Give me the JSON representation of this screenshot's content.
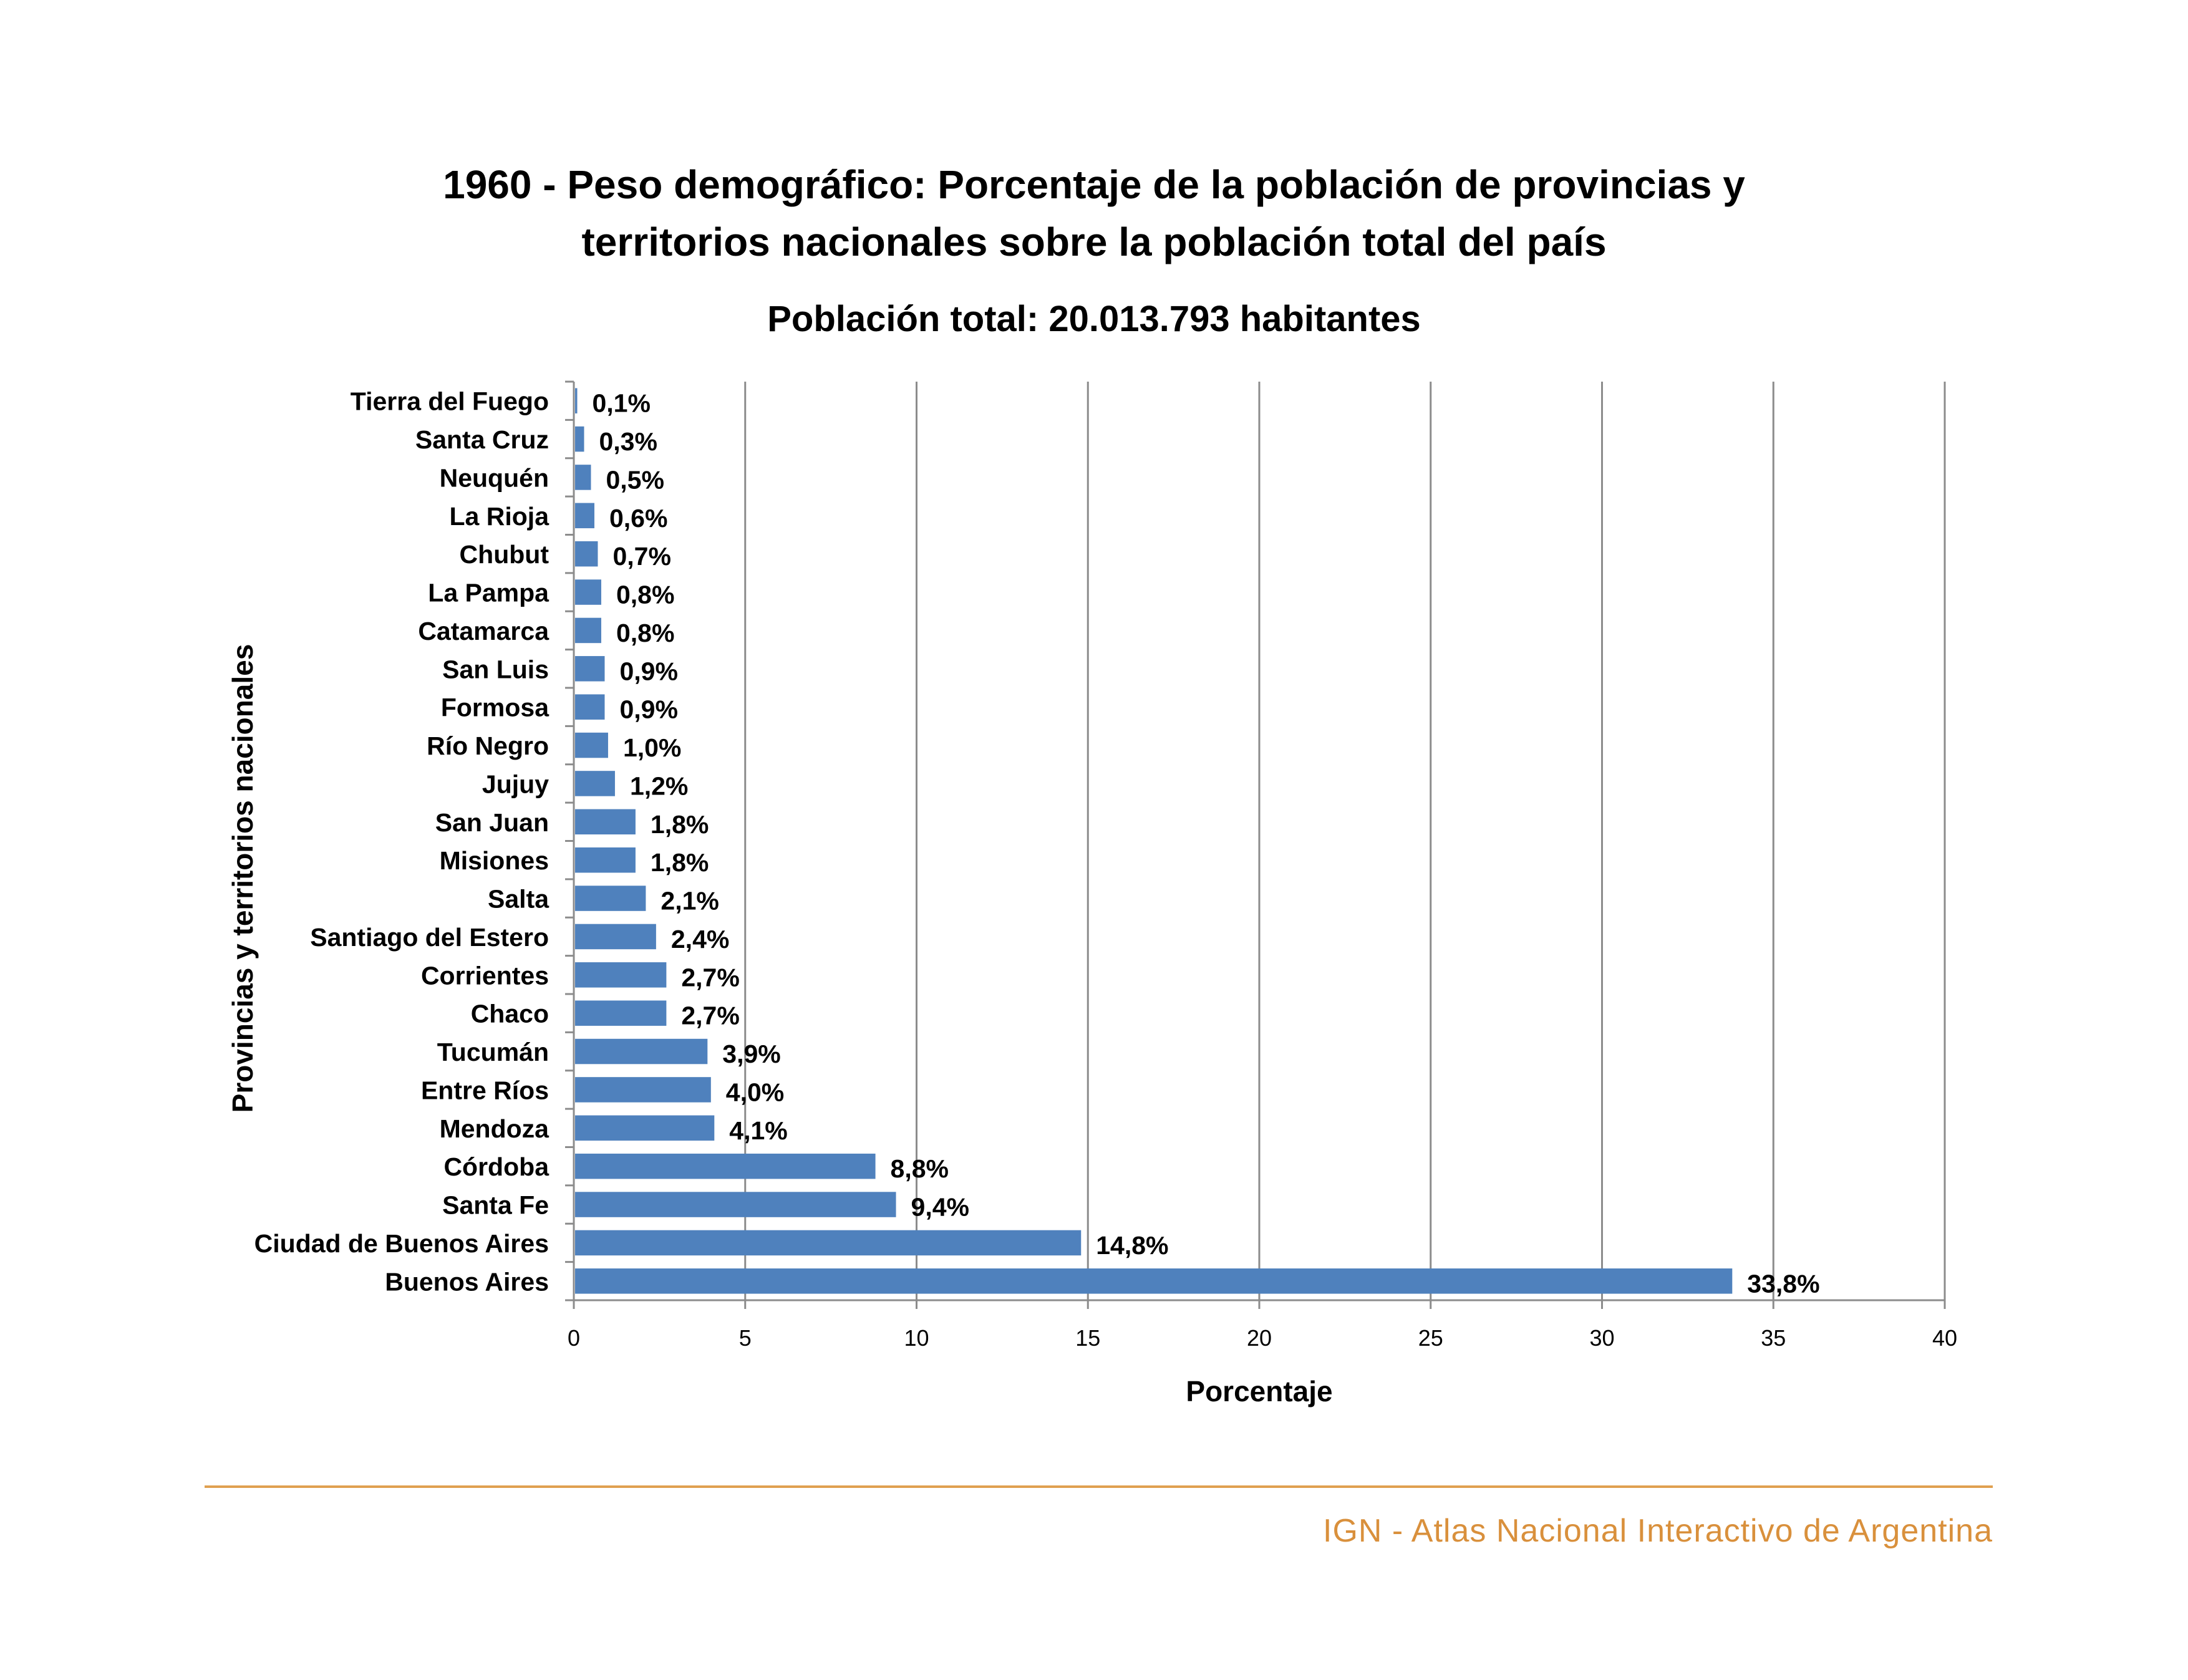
{
  "title": {
    "line1": "1960 - Peso demográfico: Porcentaje de la población de provincias y",
    "line2": "territorios nacionales sobre la población total del país"
  },
  "subtitle": "Población total: 20.013.793 habitantes",
  "footer": {
    "text": "IGN - Atlas Nacional Interactivo de Argentina",
    "color": "#D9903C",
    "line_color": "#E0A050"
  },
  "chart_data": {
    "type": "bar",
    "orientation": "horizontal",
    "categories": [
      "Buenos Aires",
      "Ciudad de Buenos Aires",
      "Santa Fe",
      "Córdoba",
      "Mendoza",
      "Entre Ríos",
      "Tucumán",
      "Chaco",
      "Corrientes",
      "Santiago del Estero",
      "Salta",
      "Misiones",
      "San Juan",
      "Jujuy",
      "Río Negro",
      "Formosa",
      "San Luis",
      "Catamarca",
      "La Pampa",
      "Chubut",
      "La Rioja",
      "Neuquén",
      "Santa Cruz",
      "Tierra del Fuego"
    ],
    "values": [
      33.8,
      14.8,
      9.4,
      8.8,
      4.1,
      4.0,
      3.9,
      2.7,
      2.7,
      2.4,
      2.1,
      1.8,
      1.8,
      1.2,
      1.0,
      0.9,
      0.9,
      0.8,
      0.8,
      0.7,
      0.6,
      0.5,
      0.3,
      0.1
    ],
    "data_labels": [
      "33,8%",
      "14,8%",
      "9,4%",
      "8,8%",
      "4,1%",
      "4,0%",
      "3,9%",
      "2,7%",
      "2,7%",
      "2,4%",
      "2,1%",
      "1,8%",
      "1,8%",
      "1,2%",
      "1,0%",
      "0,9%",
      "0,9%",
      "0,8%",
      "0,8%",
      "0,7%",
      "0,6%",
      "0,5%",
      "0,3%",
      "0,1%"
    ],
    "xlabel": "Porcentaje",
    "ylabel": "Provincias y territorios nacionales",
    "xlim": [
      0,
      40
    ],
    "xticks": [
      0,
      5,
      10,
      15,
      20,
      25,
      30,
      35,
      40
    ],
    "grid": "vertical",
    "bar_color": "#4F81BD",
    "grid_color": "#8C8C8C"
  }
}
